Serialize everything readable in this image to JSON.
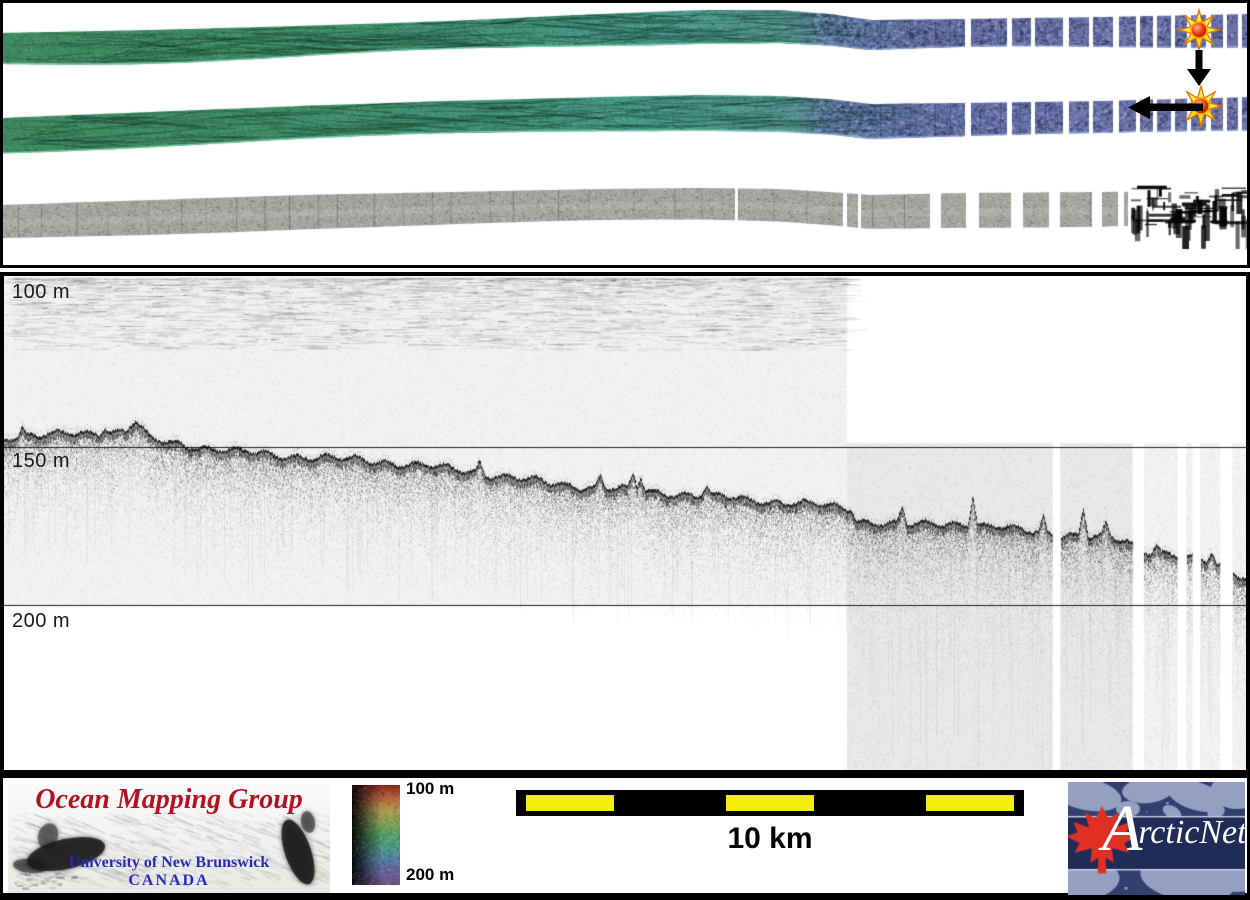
{
  "echogram": {
    "depth_labels": [
      {
        "text": "100 m",
        "depth_m": 100
      },
      {
        "text": "150 m",
        "depth_m": 150
      },
      {
        "text": "200 m",
        "depth_m": 200
      }
    ],
    "background_segment1": "#f2f2f0",
    "background_segment2": "#e9e9e7"
  },
  "legend": {
    "colorbar": {
      "top_label": "100 m",
      "bottom_label": "200 m",
      "gradient_stops": [
        "#8f2318",
        "#b2603a",
        "#b39b4e",
        "#84a455",
        "#55a069",
        "#4b9a84",
        "#527fa6",
        "#69639f",
        "#6f5280"
      ]
    },
    "scalebar": {
      "label": "10 km",
      "units": 5,
      "yellow_units": [
        0,
        2,
        4
      ],
      "yellow_hex": "#f2ee0a",
      "bar_hex": "#000000"
    }
  },
  "logos": {
    "omg": {
      "title": "Ocean Mapping Group",
      "university": "University of New Brunswick",
      "country": "CANADA",
      "title_color": "#b31225",
      "text_color": "#2a2ab8"
    },
    "arcticnet": {
      "initial": "A",
      "rest": "rcticNet",
      "bg": "#33406e",
      "band": "#1f2c58",
      "land": "#93a0c2",
      "leaf": "#e12f23"
    }
  },
  "markers": {
    "star_icon": "starburst-position-marker",
    "arrow_down_icon": "link-arrow-down",
    "arrow_left_icon": "travel-direction-arrow-left",
    "spike_fill_light": "#fff27a",
    "spike_fill": "#ffd400",
    "spike_stroke": "#d97b00",
    "core_inner": "#ffb080",
    "core_mid": "#ee3300",
    "core_outer": "#a80e00",
    "core_ring": "#ffaa00",
    "arrow_color": "#000000"
  },
  "colors": {
    "swath_stops": [
      [
        0,
        "#3e8a5f"
      ],
      [
        0.22,
        "#3f8e6b"
      ],
      [
        0.42,
        "#43947b"
      ],
      [
        0.56,
        "#4b9a8d"
      ],
      [
        0.635,
        "#54948f"
      ],
      [
        0.665,
        "#5d7ea5"
      ],
      [
        0.74,
        "#5f6ca4"
      ],
      [
        0.88,
        "#6772ab"
      ],
      [
        1,
        "#6b6fa8"
      ]
    ],
    "sidescan_base": "#a7a5a1"
  },
  "chart_data": {
    "type": "line",
    "title": "",
    "depth_gridlines_m": [
      100,
      150,
      200
    ],
    "ylim": [
      100,
      200
    ],
    "scale_bar_km": 10,
    "track_length_km": 24.7,
    "x_km": [
      0,
      1.0,
      2.4,
      2.6,
      2.9,
      5.0,
      7.0,
      9.0,
      11.0,
      13.0,
      15.0,
      16.5,
      16.85,
      16.95,
      18.0,
      19.0,
      19.9,
      21.0,
      22.3,
      22.5,
      23.5,
      24.1,
      24.7
    ],
    "seafloor_depth_m": [
      147,
      146.5,
      145,
      142,
      147.5,
      151.5,
      154,
      157,
      161,
      164,
      167,
      168.5,
      169,
      172.8,
      174,
      173.5,
      175.5,
      177.5,
      179.5,
      182,
      184.5,
      187,
      190.5
    ],
    "peaks": [
      {
        "km": 0.35,
        "rise_m": 2.5
      },
      {
        "km": 2.0,
        "rise_m": 2
      },
      {
        "km": 9.45,
        "rise_m": 4
      },
      {
        "km": 11.85,
        "rise_m": 4
      },
      {
        "km": 12.5,
        "rise_m": 5
      },
      {
        "km": 12.65,
        "rise_m": 4.5
      },
      {
        "km": 13.95,
        "rise_m": 3
      },
      {
        "km": 17.85,
        "rise_m": 5.5
      },
      {
        "km": 19.25,
        "rise_m": 10
      },
      {
        "km": 20.65,
        "rise_m": 5
      },
      {
        "km": 21.45,
        "rise_m": 9
      },
      {
        "km": 21.9,
        "rise_m": 4
      },
      {
        "km": 22.9,
        "rise_m": 3
      },
      {
        "km": 24.0,
        "rise_m": 4
      }
    ],
    "data_gaps_km": [
      [
        20.85,
        21.0
      ],
      [
        22.45,
        22.66
      ],
      [
        23.33,
        23.5
      ],
      [
        23.63,
        23.78
      ],
      [
        24.18,
        24.42
      ]
    ],
    "colorbar_range_m": [
      100,
      200
    ]
  }
}
